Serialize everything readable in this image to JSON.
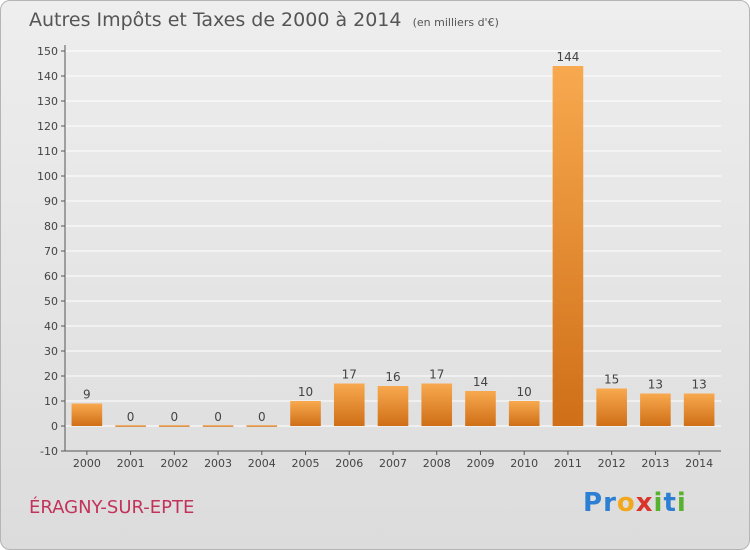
{
  "chart_data": {
    "type": "bar",
    "title": "Autres Impôts et Taxes de 2000 à 2014",
    "subtitle": "(en milliers d'€)",
    "categories": [
      "2000",
      "2001",
      "2002",
      "2003",
      "2004",
      "2005",
      "2006",
      "2007",
      "2008",
      "2009",
      "2010",
      "2011",
      "2012",
      "2013",
      "2014"
    ],
    "values": [
      9,
      0,
      0,
      0,
      0,
      10,
      17,
      16,
      17,
      14,
      10,
      144,
      15,
      13,
      13
    ],
    "data_labels": [
      "9",
      "0",
      "0",
      "0",
      "0",
      "10",
      "17",
      "16",
      "17",
      "14",
      "10",
      "144",
      "15",
      "13",
      "13"
    ],
    "ylim": [
      -10,
      150
    ],
    "yticks": [
      -10,
      0,
      10,
      20,
      30,
      40,
      50,
      60,
      70,
      80,
      90,
      100,
      110,
      120,
      130,
      140,
      150
    ],
    "xlabel": "",
    "ylabel": "",
    "grid": true,
    "colors": {
      "bar_top": "#f8a94f",
      "bar_bottom": "#cf6f17",
      "grid": "#ffffff",
      "axis": "#555555"
    }
  },
  "footer": {
    "place": "ÉRAGNY-SUR-EPTE",
    "logo_letters": [
      {
        "ch": "P",
        "color": "#2d7fd3"
      },
      {
        "ch": "r",
        "color": "#2d7fd3"
      },
      {
        "ch": "o",
        "color": "#f2a81c"
      },
      {
        "ch": "x",
        "color": "#d9352b"
      },
      {
        "ch": "i",
        "color": "#58b230"
      },
      {
        "ch": "t",
        "color": "#2d7fd3"
      },
      {
        "ch": "i",
        "color": "#58b230"
      }
    ]
  }
}
